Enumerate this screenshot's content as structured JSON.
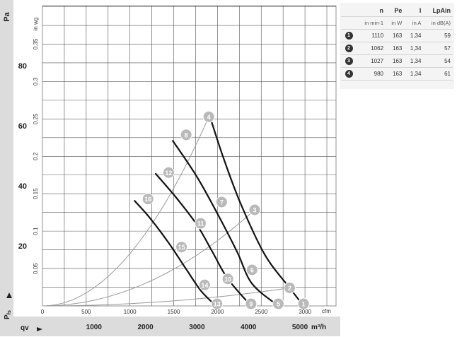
{
  "chart_data": {
    "type": "line",
    "title": "",
    "left_axis_unit": "Pa",
    "inner_axis_unit": "in wg",
    "pressure_symbol": "P",
    "pressure_subscript": "fs",
    "flow_symbol": "qv",
    "top_x_unit": "cfm",
    "bottom_x_unit": "m³/h",
    "xlim_m3h": [
      0,
      5700
    ],
    "ylim_pa": [
      0,
      100
    ],
    "pa_ticks": [
      "20",
      "40",
      "60",
      "80"
    ],
    "inwg_ticks": [
      "0.05",
      "0.1",
      "0.15",
      "0.2",
      "0.25",
      "0.3",
      "0.35"
    ],
    "cfm_ticks": [
      "0",
      "500",
      "1000",
      "1500",
      "2000",
      "2500",
      "3000"
    ],
    "m3h_ticks": [
      "1000",
      "2000",
      "3000",
      "4000",
      "5000"
    ],
    "grid": true,
    "series": [
      {
        "curve": "1",
        "points_m3h_pa": [
          [
            3290,
            61
          ],
          [
            3520,
            49
          ],
          [
            3850,
            34
          ],
          [
            4320,
            17
          ],
          [
            4800,
            6
          ],
          [
            5070,
            0
          ]
        ],
        "markers": [
          {
            "label": "4",
            "x": 3230,
            "y": 63
          },
          {
            "label": "3",
            "x": 4120,
            "y": 32
          },
          {
            "label": "2",
            "x": 4800,
            "y": 6
          },
          {
            "label": "1",
            "x": 5070,
            "y": 0
          }
        ]
      },
      {
        "curve": "2",
        "points_m3h_pa": [
          [
            2530,
            55
          ],
          [
            3000,
            43
          ],
          [
            3420,
            30
          ],
          [
            3780,
            18
          ],
          [
            4070,
            7.4
          ],
          [
            4580,
            0
          ]
        ],
        "markers": [
          {
            "label": "8",
            "x": 2790,
            "y": 57
          },
          {
            "label": "7",
            "x": 3480,
            "y": 34.6
          },
          {
            "label": "6",
            "x": 4070,
            "y": 12
          },
          {
            "label": "5",
            "x": 4580,
            "y": 0
          }
        ]
      },
      {
        "curve": "3",
        "points_m3h_pa": [
          [
            2200,
            44
          ],
          [
            2600,
            36
          ],
          [
            3000,
            27
          ],
          [
            3300,
            18
          ],
          [
            3600,
            9
          ],
          [
            4050,
            0
          ]
        ],
        "markers": [
          {
            "label": "12",
            "x": 2450,
            "y": 44.4
          },
          {
            "label": "11",
            "x": 3070,
            "y": 27.5
          },
          {
            "label": "10",
            "x": 3600,
            "y": 9
          },
          {
            "label": "9",
            "x": 4050,
            "y": 0
          }
        ]
      },
      {
        "curve": "4",
        "points_m3h_pa": [
          [
            1790,
            35
          ],
          [
            2100,
            29
          ],
          [
            2450,
            21
          ],
          [
            2800,
            12
          ],
          [
            3080,
            5
          ],
          [
            3370,
            0
          ]
        ],
        "markers": [
          {
            "label": "16",
            "x": 2050,
            "y": 35.6
          },
          {
            "label": "15",
            "x": 2700,
            "y": 19.6
          },
          {
            "label": "14",
            "x": 3150,
            "y": 7
          },
          {
            "label": "13",
            "x": 3390,
            "y": 0
          }
        ]
      }
    ],
    "system_curve_markers": [
      [
        "16",
        "12",
        "8",
        "4"
      ],
      [
        "15",
        "11",
        "7",
        "3"
      ],
      [
        "14",
        "10",
        "6",
        "2"
      ]
    ]
  },
  "table": {
    "headers": [
      "n",
      "Pe",
      "I",
      "LpAin"
    ],
    "units": [
      "in min-1",
      "in W",
      "in A",
      "in dB(A)"
    ],
    "rows": [
      {
        "id": "1",
        "n": "1110",
        "pe": "163",
        "i": "1,34",
        "lpa": "59"
      },
      {
        "id": "2",
        "n": "1062",
        "pe": "163",
        "i": "1,34",
        "lpa": "57"
      },
      {
        "id": "3",
        "n": "1027",
        "pe": "163",
        "i": "1,34",
        "lpa": "54"
      },
      {
        "id": "4",
        "n": "980",
        "pe": "163",
        "i": "1,34",
        "lpa": "61"
      }
    ]
  }
}
